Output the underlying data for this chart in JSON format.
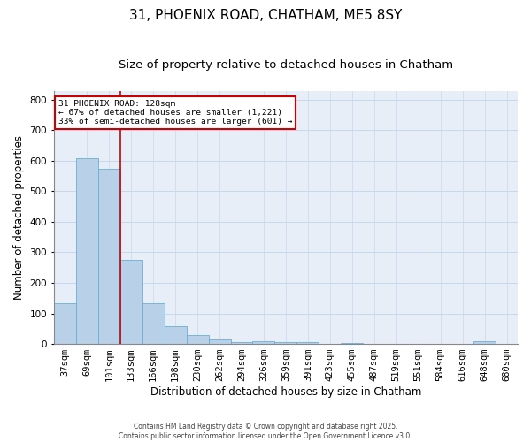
{
  "title1": "31, PHOENIX ROAD, CHATHAM, ME5 8SY",
  "title2": "Size of property relative to detached houses in Chatham",
  "xlabel": "Distribution of detached houses by size in Chatham",
  "ylabel": "Number of detached properties",
  "categories": [
    "37sqm",
    "69sqm",
    "101sqm",
    "133sqm",
    "166sqm",
    "198sqm",
    "230sqm",
    "262sqm",
    "294sqm",
    "326sqm",
    "359sqm",
    "391sqm",
    "423sqm",
    "455sqm",
    "487sqm",
    "519sqm",
    "551sqm",
    "584sqm",
    "616sqm",
    "648sqm",
    "680sqm"
  ],
  "values": [
    133,
    608,
    575,
    275,
    133,
    58,
    28,
    14,
    5,
    8,
    6,
    5,
    0,
    3,
    0,
    0,
    0,
    0,
    0,
    8,
    0
  ],
  "bar_color": "#B8D0E8",
  "bar_edge_color": "#6BAED6",
  "grid_color": "#C8D8EC",
  "background_color": "#E8EEF8",
  "vline_color": "#CC0000",
  "annotation_text": "31 PHOENIX ROAD: 128sqm\n← 67% of detached houses are smaller (1,221)\n33% of semi-detached houses are larger (601) →",
  "annotation_box_color": "#CC0000",
  "ylim": [
    0,
    830
  ],
  "yticks": [
    0,
    100,
    200,
    300,
    400,
    500,
    600,
    700,
    800
  ],
  "title_fontsize": 11,
  "subtitle_fontsize": 9.5,
  "label_fontsize": 8.5,
  "tick_fontsize": 7.5,
  "footnote_fontsize": 5.5
}
